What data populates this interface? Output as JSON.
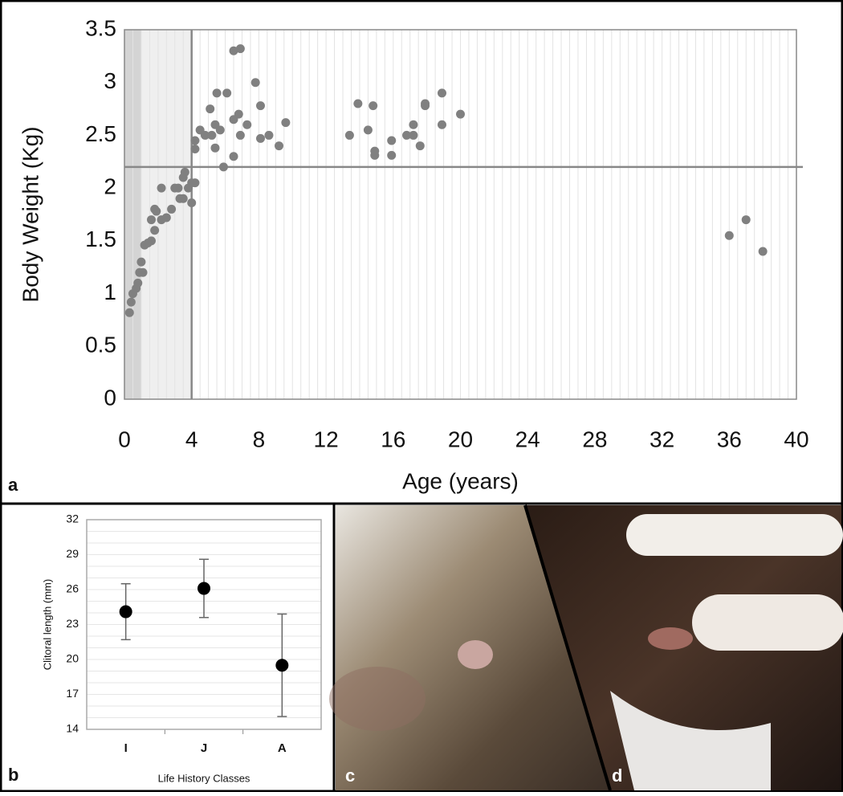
{
  "chart_data": [
    {
      "type": "scatter",
      "panel_label": "a",
      "x_label": "Age (years)",
      "y_label": "Body Weight (Kg)",
      "color": "#808080",
      "x": [
        0.3,
        0.4,
        0.5,
        0.7,
        0.8,
        0.9,
        1.0,
        1.1,
        1.2,
        1.4,
        1.6,
        1.6,
        1.8,
        1.8,
        1.9,
        2.2,
        2.2,
        2.5,
        2.8,
        3.0,
        3.2,
        3.3,
        3.5,
        3.5,
        3.6,
        3.8,
        4.0,
        4.0,
        4.2,
        4.2,
        4.2,
        4.5,
        4.8,
        5.1,
        5.2,
        5.4,
        5.4,
        5.5,
        5.7,
        5.9,
        6.1,
        6.5,
        6.5,
        6.5,
        6.8,
        6.9,
        6.9,
        7.3,
        7.8,
        8.1,
        8.1,
        8.6,
        9.2,
        9.6,
        13.4,
        13.9,
        14.5,
        14.8,
        14.9,
        14.9,
        15.9,
        15.9,
        16.8,
        17.2,
        17.2,
        17.6,
        17.9,
        17.9,
        18.9,
        18.9,
        20.0,
        36.0,
        37.0,
        38.0
      ],
      "values": [
        0.82,
        0.92,
        1.0,
        1.05,
        1.1,
        1.2,
        1.3,
        1.2,
        1.46,
        1.48,
        1.5,
        1.7,
        1.6,
        1.8,
        1.78,
        2.0,
        1.7,
        1.72,
        1.8,
        2.0,
        2.0,
        1.9,
        1.9,
        2.1,
        2.15,
        2.0,
        2.05,
        1.86,
        2.05,
        2.37,
        2.45,
        2.55,
        2.5,
        2.75,
        2.5,
        2.6,
        2.38,
        2.9,
        2.55,
        2.2,
        2.9,
        2.3,
        2.65,
        3.3,
        2.7,
        3.32,
        2.5,
        2.6,
        3.0,
        2.78,
        2.47,
        2.5,
        2.4,
        2.62,
        2.5,
        2.8,
        2.55,
        2.78,
        2.35,
        2.31,
        2.45,
        2.31,
        2.5,
        2.5,
        2.6,
        2.4,
        2.78,
        2.8,
        2.6,
        2.9,
        2.7,
        1.55,
        1.7,
        1.4
      ],
      "xlim": [
        0,
        40
      ],
      "xticks": [
        0,
        4,
        8,
        12,
        16,
        20,
        24,
        28,
        32,
        36,
        40
      ],
      "ylim": [
        0,
        3.5
      ],
      "yticks": [
        0,
        0.5,
        1,
        1.5,
        2,
        2.5,
        3,
        3.5
      ],
      "minor_grid_step": 0.5,
      "shaded": [
        {
          "range": [
            0,
            1
          ],
          "color": "#d4d4d4"
        },
        {
          "range": [
            1,
            4
          ],
          "color": "#efefef"
        }
      ],
      "reference_lines": {
        "x": 4,
        "y": 2.2
      }
    },
    {
      "type": "errorbar",
      "panel_label": "b",
      "x_label": "Life History Classes",
      "y_label": "Clitoral length (mm)",
      "categories": [
        "I",
        "J",
        "A"
      ],
      "values": [
        24.1,
        26.1,
        19.5
      ],
      "errors": [
        2.4,
        2.5,
        4.4
      ],
      "color": "#000000",
      "ylim": [
        14,
        32
      ],
      "yticks": [
        14,
        17,
        20,
        23,
        26,
        29,
        32
      ],
      "minor_grid_step": 1
    }
  ],
  "photo_labels": [
    "c",
    "d"
  ]
}
